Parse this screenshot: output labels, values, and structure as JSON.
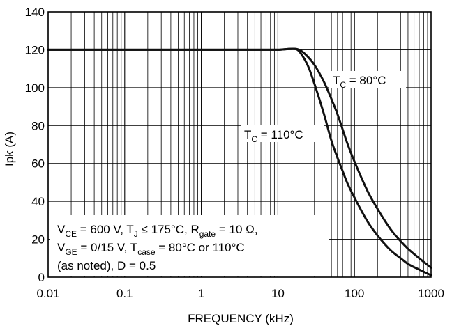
{
  "chart_data": {
    "type": "line",
    "title": "",
    "xlabel": "FREQUENCY (kHz)",
    "ylabel": "Ipk (A)",
    "x_scale": "log",
    "xlim": [
      0.01,
      1000
    ],
    "ylim": [
      0,
      140
    ],
    "grid": true,
    "x_ticks": [
      {
        "value": 0.01,
        "label": "0.01"
      },
      {
        "value": 0.1,
        "label": "0.1"
      },
      {
        "value": 1,
        "label": "1"
      },
      {
        "value": 10,
        "label": "10"
      },
      {
        "value": 100,
        "label": "100"
      },
      {
        "value": 1000,
        "label": "1000"
      }
    ],
    "y_ticks": [
      {
        "value": 0,
        "label": "0"
      },
      {
        "value": 20,
        "label": "20"
      },
      {
        "value": 40,
        "label": "40"
      },
      {
        "value": 60,
        "label": "60"
      },
      {
        "value": 80,
        "label": "80"
      },
      {
        "value": 100,
        "label": "100"
      },
      {
        "value": 120,
        "label": "120"
      },
      {
        "value": 140,
        "label": "140"
      }
    ],
    "series": [
      {
        "key": "tc80",
        "x": [
          0.01,
          1,
          10,
          15,
          18,
          20,
          25,
          30,
          40,
          50,
          60,
          70,
          80,
          100,
          150,
          200,
          300,
          400,
          500,
          700,
          1000
        ],
        "y": [
          120,
          120,
          120,
          120.5,
          120.3,
          119.5,
          116,
          112,
          103,
          94,
          86,
          78,
          71,
          61,
          45,
          36,
          25,
          19,
          15,
          10,
          5
        ]
      },
      {
        "key": "tc110",
        "x": [
          0.01,
          1,
          10,
          15,
          18,
          20,
          25,
          30,
          40,
          50,
          60,
          70,
          80,
          100,
          150,
          200,
          300,
          400,
          500,
          700,
          1000
        ],
        "y": [
          120,
          120,
          120,
          120.5,
          120,
          118,
          111,
          102,
          86,
          72,
          63,
          56,
          50,
          42,
          29,
          22,
          14,
          10,
          7,
          4,
          1
        ]
      }
    ],
    "annotations": {
      "tc80": {
        "text": "T",
        "sub": "C",
        "rest": " = 80°C"
      },
      "tc110": {
        "text": "T",
        "sub": "C",
        "rest": " = 110°C"
      },
      "conditions": {
        "line1": {
          "v": "V",
          "v_sub": "CE",
          "v_rest": " = 600 V, ",
          "t": "T",
          "t_sub": "J",
          "t_rest": " ≤ 175°C, ",
          "r": "R",
          "r_sub": "gate",
          "r_rest": " = 10 Ω,"
        },
        "line2": {
          "v": "V",
          "v_sub": "GE",
          "v_rest": " = 0/15 V, ",
          "t": "T",
          "t_sub": "case",
          "t_rest": " = 80°C or 110°C"
        },
        "line3": "(as noted), D = 0.5"
      }
    },
    "colors": {
      "line": "#111111",
      "grid": "#000000",
      "background": "#ffffff"
    }
  }
}
